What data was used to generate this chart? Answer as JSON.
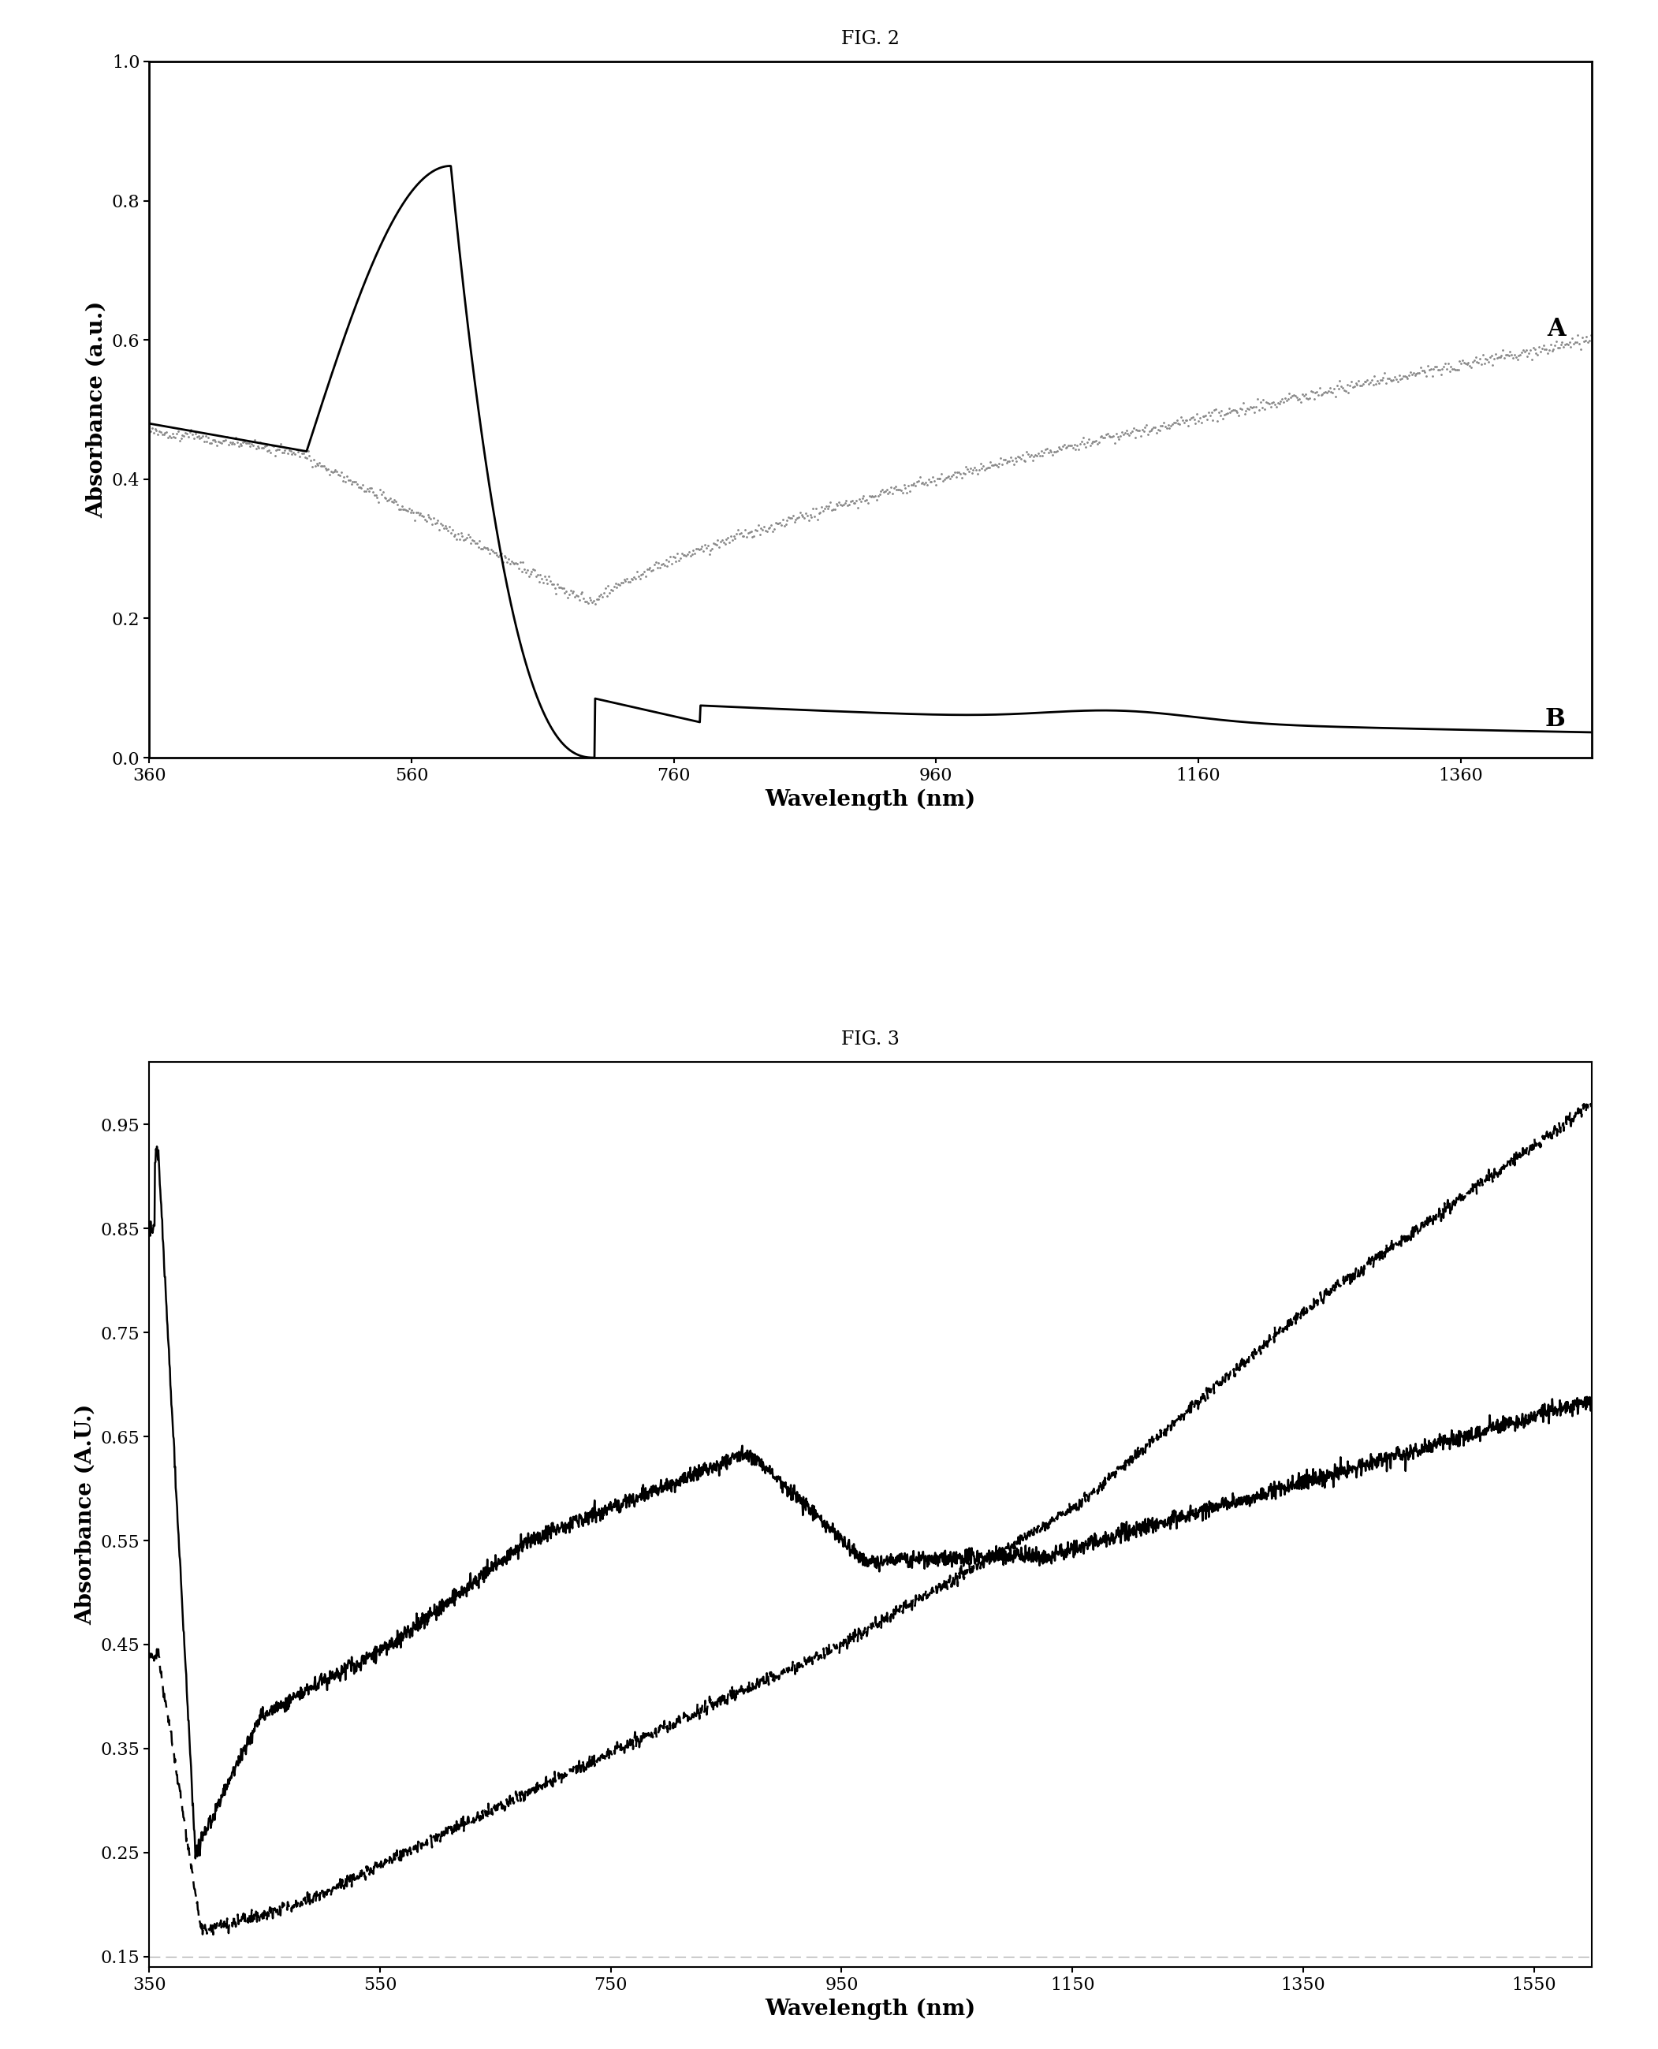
{
  "fig2_title": "FIG. 2",
  "fig3_title": "FIG. 3",
  "fig2_xlabel": "Wavelength (nm)",
  "fig2_ylabel": "Absorbance (a.u.)",
  "fig2_xlim": [
    360,
    1460
  ],
  "fig2_ylim": [
    0,
    1.0
  ],
  "fig2_xticks": [
    360,
    560,
    760,
    960,
    1160,
    1360
  ],
  "fig2_yticks": [
    0,
    0.2,
    0.4,
    0.6,
    0.8,
    1.0
  ],
  "fig2_label_A": "A",
  "fig2_label_B": "B",
  "fig3_xlabel": "Wavelength (nm)",
  "fig3_ylabel": "Absorbance (A.U.)",
  "fig3_xlim": [
    350,
    1600
  ],
  "fig3_ylim_min": 0.14,
  "fig3_ylim_max": 1.01,
  "fig3_xticks": [
    350,
    550,
    750,
    950,
    1150,
    1350,
    1550
  ],
  "fig3_yticks": [
    0.15,
    0.25,
    0.35,
    0.45,
    0.55,
    0.65,
    0.75,
    0.85,
    0.95
  ],
  "background_color": "#ffffff"
}
